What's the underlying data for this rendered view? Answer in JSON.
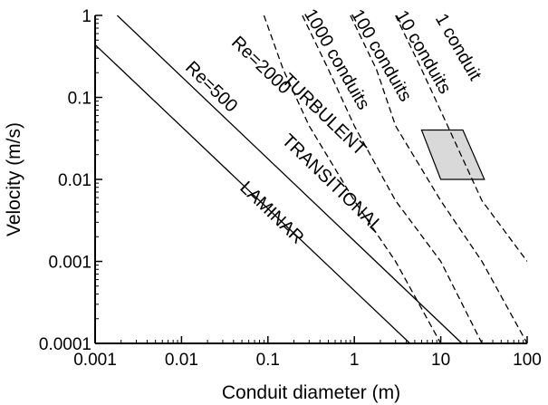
{
  "chart_data": {
    "type": "line",
    "xlabel": "Conduit diameter   (m)",
    "ylabel": "Velocity   (m/s)",
    "x_scale": "log",
    "y_scale": "log",
    "xlim": [
      0.001,
      100
    ],
    "ylim": [
      0.0001,
      1
    ],
    "x_ticks": [
      {
        "value": 0.001,
        "label": "0.001"
      },
      {
        "value": 0.01,
        "label": "0.01"
      },
      {
        "value": 0.1,
        "label": "0.1"
      },
      {
        "value": 1,
        "label": "1"
      },
      {
        "value": 10,
        "label": "10"
      },
      {
        "value": 100,
        "label": "100"
      }
    ],
    "y_ticks": [
      {
        "value": 0.0001,
        "label": "0.0001"
      },
      {
        "value": 0.001,
        "label": "0.001"
      },
      {
        "value": 0.01,
        "label": "0.01"
      },
      {
        "value": 0.1,
        "label": "0.1"
      },
      {
        "value": 1,
        "label": "1"
      }
    ],
    "grid": false,
    "series": [
      {
        "name": "Re=500",
        "style": "solid",
        "points": [
          [
            0.001,
            0.44
          ],
          [
            4.4,
            0.0001
          ]
        ]
      },
      {
        "name": "Re=2000",
        "style": "solid",
        "points": [
          [
            0.0018,
            1
          ],
          [
            17.6,
            0.0001
          ]
        ]
      },
      {
        "name": "1000 conduits",
        "style": "dashed",
        "points": [
          [
            0.09,
            1
          ],
          [
            0.15,
            0.22
          ],
          [
            0.3,
            0.045
          ],
          [
            1,
            0.0055
          ],
          [
            3,
            0.001
          ],
          [
            10,
            0.0001
          ]
        ]
      },
      {
        "name": "100 conduits",
        "style": "dashed",
        "points": [
          [
            0.25,
            1
          ],
          [
            0.5,
            0.22
          ],
          [
            1,
            0.045
          ],
          [
            3,
            0.0055
          ],
          [
            10,
            0.001
          ],
          [
            30,
            0.0001
          ]
        ]
      },
      {
        "name": "10 conduits",
        "style": "dashed",
        "points": [
          [
            0.9,
            1
          ],
          [
            1.8,
            0.22
          ],
          [
            3,
            0.045
          ],
          [
            10,
            0.0055
          ],
          [
            30,
            0.001
          ],
          [
            100,
            0.0001
          ]
        ]
      },
      {
        "name": "1 conduit",
        "style": "dashed",
        "points": [
          [
            3,
            1
          ],
          [
            6,
            0.22
          ],
          [
            12,
            0.045
          ],
          [
            30,
            0.0055
          ],
          [
            100,
            0.001
          ]
        ]
      }
    ],
    "shaded_region": {
      "fill": "#d9d9d9",
      "points": [
        [
          6,
          0.04
        ],
        [
          18,
          0.04
        ],
        [
          32,
          0.01
        ],
        [
          10,
          0.01
        ]
      ]
    },
    "annotations": [
      {
        "text": "LAMINAR",
        "x": 0.1,
        "y": 0.0035,
        "angle": -44
      },
      {
        "text": "TRANSITIONAL",
        "x": 0.5,
        "y": 0.008,
        "angle": -44
      },
      {
        "text": "TURBULENT",
        "x": 0.4,
        "y": 0.055,
        "angle": -44
      },
      {
        "text": "Re=500",
        "x": 0.02,
        "y": 0.12,
        "angle": -44
      },
      {
        "text": "Re=2000",
        "x": 0.075,
        "y": 0.22,
        "angle": -44
      },
      {
        "text": "1000 conduits",
        "x": 0.55,
        "y": 0.27,
        "angle": -60
      },
      {
        "text": "100 conduits",
        "x": 1.8,
        "y": 0.3,
        "angle": -60
      },
      {
        "text": "10 conduits",
        "x": 5.5,
        "y": 0.33,
        "angle": -60
      },
      {
        "text": "1 conduit",
        "x": 14,
        "y": 0.38,
        "angle": -60
      }
    ],
    "colors": {
      "line": "#000000",
      "background": "#ffffff",
      "shade": "#d9d9d9"
    }
  }
}
